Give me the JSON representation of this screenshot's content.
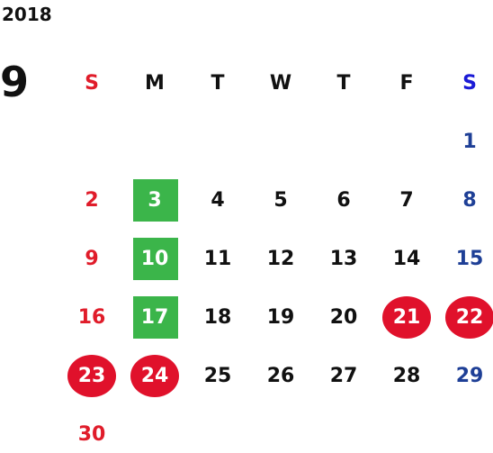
{
  "calendar": {
    "year": "2018",
    "month": "9",
    "weekdays": [
      "S",
      "M",
      "T",
      "W",
      "T",
      "F",
      "S"
    ],
    "weeks": [
      [
        "",
        "",
        "",
        "",
        "",
        "",
        "1"
      ],
      [
        "2",
        "3",
        "4",
        "5",
        "6",
        "7",
        "8"
      ],
      [
        "9",
        "10",
        "11",
        "12",
        "13",
        "14",
        "15"
      ],
      [
        "16",
        "17",
        "18",
        "19",
        "20",
        "21",
        "22"
      ],
      [
        "23",
        "24",
        "25",
        "26",
        "27",
        "28",
        "29"
      ],
      [
        "30",
        "",
        "",
        "",
        "",
        "",
        ""
      ]
    ],
    "green_highlight_days": [
      "3",
      "10",
      "17"
    ],
    "red_highlight_days": [
      "21",
      "22",
      "23",
      "24"
    ],
    "colors": {
      "sunday": "#e01c2a",
      "saturday": "#1e3f96",
      "green_highlight": "#3bb54a",
      "red_highlight": "#e0112b"
    }
  }
}
